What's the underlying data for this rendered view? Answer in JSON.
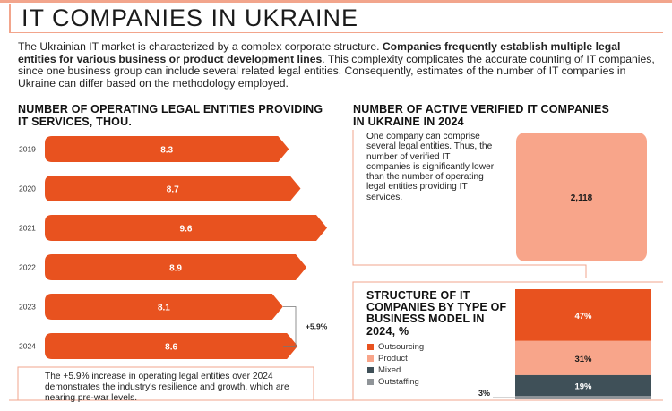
{
  "header": {
    "title": "IT COMPANIES IN UKRAINE"
  },
  "intro": {
    "part1": "The Ukrainian IT market is characterized by a complex corporate structure. ",
    "bold": "Companies frequently establish multiple legal entities for various business or product development lines",
    "part2": ". This complexity complicates the accurate counting of IT companies, since one business group can include several related legal entities. Consequently, estimates of the number of IT companies in Ukraine can differ based on the methodology employed."
  },
  "bars_section": {
    "title": "NUMBER OF OPERATING LEGAL ENTITIES PROVIDING IT SERVICES, THOU.",
    "growth_label": "+5.9%",
    "note": "The +5.9% increase in operating legal entities over 2024 demonstrates the industry's resilience and growth, which are nearing pre-war levels."
  },
  "verified_section": {
    "title": "NUMBER OF ACTIVE VERIFIED IT COMPANIES IN UKRAINE IN 2024",
    "note": "One company can comprise several legal entities. Thus, the number of verified IT companies is significantly lower than the number of operating legal entities providing IT services.",
    "value_label": "2,118"
  },
  "structure_section": {
    "title": "STRUCTURE OF IT COMPANIES BY TYPE OF BUSINESS MODEL IN 2024, %"
  },
  "colors": {
    "accent": "#e8521f",
    "light": "#f8a58a",
    "dark": "#3f5058",
    "grey": "#8f9498",
    "line": "#f2a58c"
  },
  "chart_data": [
    {
      "type": "bar",
      "orientation": "horizontal",
      "title": "NUMBER OF OPERATING LEGAL ENTITIES PROVIDING IT SERVICES, THOU.",
      "categories": [
        "2019",
        "2020",
        "2021",
        "2022",
        "2023",
        "2024"
      ],
      "values": [
        8.3,
        8.7,
        9.6,
        8.9,
        8.1,
        8.6
      ],
      "value_labels": [
        "8.3",
        "8.7",
        "9.6",
        "8.9",
        "8.1",
        "8.6"
      ],
      "xlim": [
        0,
        9.6
      ],
      "annotation": {
        "from": "2023",
        "to": "2024",
        "text": "+5.9%"
      }
    },
    {
      "type": "bar",
      "title": "NUMBER OF ACTIVE VERIFIED IT COMPANIES IN UKRAINE IN 2024",
      "categories": [
        "2024"
      ],
      "values": [
        2118
      ],
      "value_labels": [
        "2,118"
      ]
    },
    {
      "type": "bar",
      "stacked": true,
      "title": "STRUCTURE OF IT COMPANIES BY TYPE OF BUSINESS MODEL IN 2024, %",
      "series": [
        {
          "name": "Outsourcing",
          "value": 47,
          "label": "47%"
        },
        {
          "name": "Product",
          "value": 31,
          "label": "31%"
        },
        {
          "name": "Mixed",
          "value": 19,
          "label": "19%"
        },
        {
          "name": "Outstaffing",
          "value": 3,
          "label": "3%"
        }
      ]
    }
  ]
}
